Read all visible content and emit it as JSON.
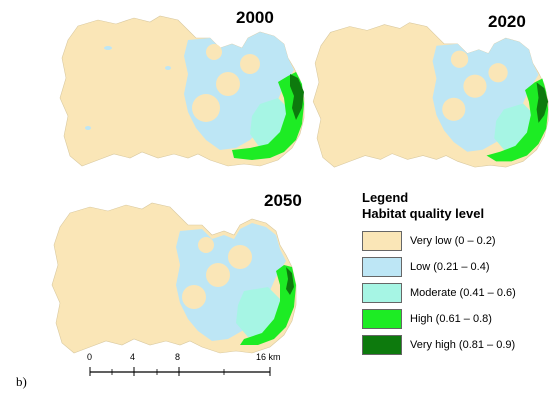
{
  "figure_label": "b)",
  "maps": [
    {
      "year": "2000"
    },
    {
      "year": "2020"
    },
    {
      "year": "2050"
    }
  ],
  "legend": {
    "title": "Legend",
    "subtitle": "Habitat quality level",
    "items": [
      {
        "label": "Very low (0 – 0.2)",
        "color": "#fae6b7"
      },
      {
        "label": "Low (0.21 – 0.4)",
        "color": "#bde6f5"
      },
      {
        "label": "Moderate (0.41 – 0.6)",
        "color": "#a6f5e4"
      },
      {
        "label": "High (0.61 – 0.8)",
        "color": "#1dec24"
      },
      {
        "label": "Very high (0.81 – 0.9)",
        "color": "#0d7a0d"
      }
    ]
  },
  "scalebar": {
    "ticks": [
      "0",
      "4",
      "8",
      "16 km"
    ]
  }
}
